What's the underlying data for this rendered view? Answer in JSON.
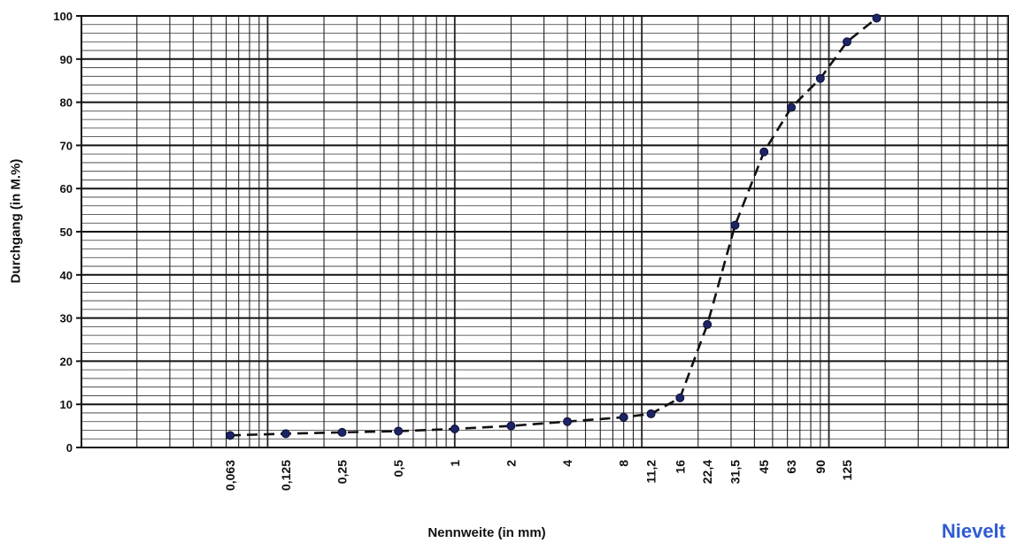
{
  "chart_data": {
    "type": "line",
    "title": "",
    "xlabel": "Nennweite  (in mm)",
    "ylabel": "Durchgang (in M.%)",
    "ylim": [
      0,
      100
    ],
    "yticks": [
      0,
      10,
      20,
      30,
      40,
      50,
      60,
      70,
      80,
      90,
      100
    ],
    "x_scale": "log",
    "x_ticks": [
      "0,063",
      "0,125",
      "0,25",
      "0,5",
      "1",
      "2",
      "4",
      "8",
      "11,2",
      "16",
      "22,4",
      "31,5",
      "45",
      "63",
      "90",
      "125"
    ],
    "grid": true,
    "series": [
      {
        "line_style": "dashed",
        "color": "#111111",
        "marker_color": "#1c2466",
        "points": [
          {
            "x": "0,063",
            "y": 2.8
          },
          {
            "x": "0,125",
            "y": 3.2
          },
          {
            "x": "0,25",
            "y": 3.5
          },
          {
            "x": "0,5",
            "y": 3.8
          },
          {
            "x": "1",
            "y": 4.3
          },
          {
            "x": "2",
            "y": 5.0
          },
          {
            "x": "4",
            "y": 6.0
          },
          {
            "x": "8",
            "y": 7.0
          },
          {
            "x": "11,2",
            "y": 7.8
          },
          {
            "x": "16",
            "y": 11.5
          },
          {
            "x": "22,4",
            "y": 28.5
          },
          {
            "x": "31,5",
            "y": 51.5
          },
          {
            "x": "45",
            "y": 68.5
          },
          {
            "x": "63",
            "y": 78.8
          },
          {
            "x": "90",
            "y": 85.5
          },
          {
            "x": "125",
            "y": 94.0
          },
          {
            "x": "180",
            "y": 99.5
          }
        ]
      }
    ]
  },
  "brand": "Nievelt"
}
